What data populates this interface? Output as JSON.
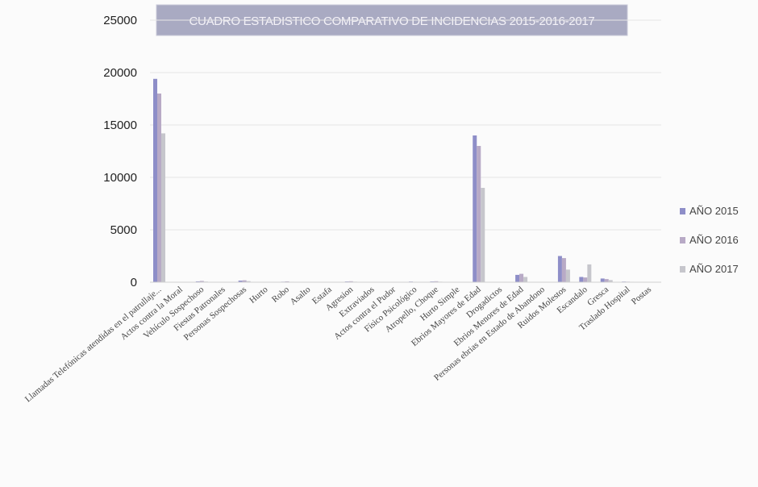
{
  "chart_data": {
    "type": "bar",
    "title": "CUADRO ESTADISTICO COMPARATIVO DE INCIDENCIAS 2015-2016-2017",
    "xlabel": "",
    "ylabel": "",
    "ylim": [
      0,
      25000
    ],
    "yticks": [
      0,
      5000,
      10000,
      15000,
      20000,
      25000
    ],
    "grid": true,
    "legend_position": "right",
    "categories": [
      "Llamadas Telefónicas atendidas en el patrullaje...",
      "Actos contra la Moral",
      "Vehículo Sospechoso",
      "Fiestas Patronales",
      "Personas Sospechosas",
      "Hurto",
      "Robo",
      "Asalto",
      "Estafa",
      "Agresion",
      "Extraviados",
      "Actos contra el Pudor",
      "Físico Psicológico",
      "Atropello, Choque",
      "Hurto Simple",
      "Ebrios Mayores de Edad",
      "Drogadictos",
      "Ebrios Menores de Edad",
      "Personas ebrias en Estado de Abandono",
      "Ruidos Molestos",
      "Escandalo",
      "Gresca",
      "Traslado Hospital",
      "Postas"
    ],
    "series": [
      {
        "name": "AÑO 2015",
        "color": "#8e8ec8",
        "values": [
          19400,
          0,
          80,
          0,
          150,
          0,
          50,
          0,
          0,
          70,
          0,
          0,
          60,
          70,
          0,
          14000,
          0,
          700,
          0,
          2500,
          500,
          350,
          60,
          0
        ]
      },
      {
        "name": "AÑO 2016",
        "color": "#b8aac6",
        "values": [
          18000,
          0,
          120,
          0,
          180,
          0,
          80,
          0,
          0,
          90,
          0,
          0,
          40,
          90,
          0,
          13000,
          0,
          800,
          0,
          2300,
          450,
          300,
          50,
          0
        ]
      },
      {
        "name": "AÑO 2017",
        "color": "#c6c6cc",
        "values": [
          14200,
          0,
          60,
          0,
          100,
          0,
          40,
          0,
          0,
          50,
          0,
          0,
          30,
          50,
          0,
          9000,
          0,
          500,
          0,
          1200,
          1700,
          200,
          40,
          0
        ]
      }
    ]
  }
}
